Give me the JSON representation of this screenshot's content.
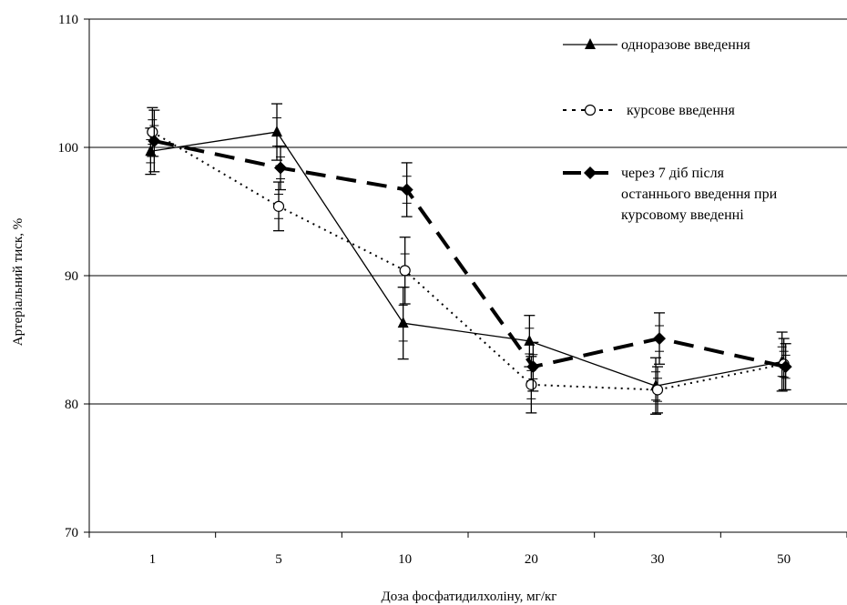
{
  "chart_data": {
    "type": "line",
    "categories": [
      "1",
      "5",
      "10",
      "20",
      "30",
      "50"
    ],
    "xlabel": "Доза фосфатидилхоліну, мг/кг",
    "ylabel": "Артеріальний тиск, %",
    "ylim": [
      70,
      110
    ],
    "yticks": [
      70,
      80,
      90,
      100,
      110
    ],
    "grid": "horizontal gridlines at 80, 90, 100, 110",
    "legend_position": "top-right",
    "series": [
      {
        "name": "одноразове введення",
        "style": "solid line, filled triangle markers",
        "values": [
          99.7,
          101.2,
          86.3,
          84.9,
          81.4,
          83.3
        ],
        "errors": [
          1.8,
          2.2,
          2.8,
          2.0,
          2.2,
          2.3
        ]
      },
      {
        "name": "курсове введення",
        "style": "dotted line, open circle markers",
        "values": [
          101.2,
          95.4,
          90.4,
          81.5,
          81.1,
          83.1
        ],
        "errors": [
          1.9,
          1.9,
          2.6,
          2.2,
          1.8,
          2.0
        ]
      },
      {
        "name": "через 7 діб після останнього введення при курсовому введенні",
        "name_lines": [
          "через 7 діб після",
          "останнього введення при",
          "курсовому введенні"
        ],
        "style": "thick dashed line, filled diamond markers",
        "values": [
          100.5,
          98.4,
          96.7,
          82.9,
          85.1,
          82.9
        ],
        "errors": [
          2.4,
          1.7,
          2.1,
          1.9,
          2.0,
          1.8
        ]
      }
    ]
  }
}
